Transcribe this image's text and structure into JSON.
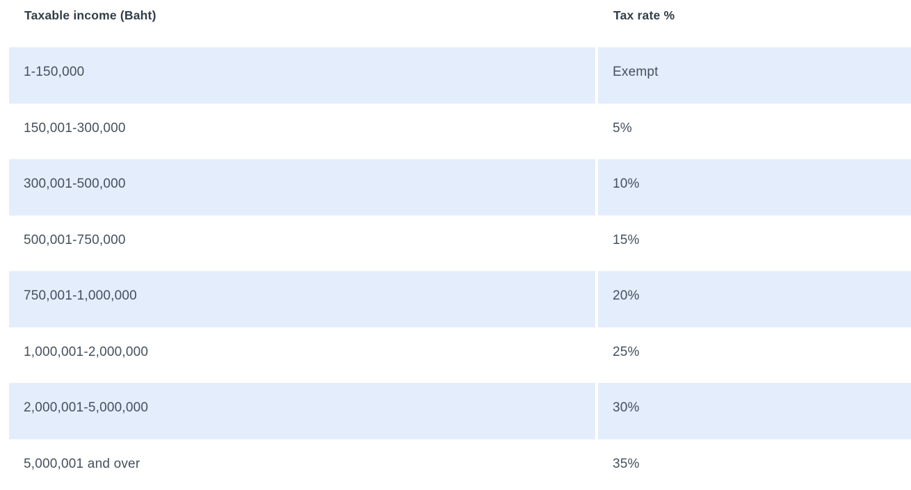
{
  "table": {
    "columns": [
      {
        "label": "Taxable income (Baht)"
      },
      {
        "label": "Tax rate %"
      }
    ],
    "rows": [
      {
        "income": "1-150,000",
        "rate": "Exempt"
      },
      {
        "income": "150,001-300,000",
        "rate": "5%"
      },
      {
        "income": "300,001-500,000",
        "rate": "10%"
      },
      {
        "income": "500,001-750,000",
        "rate": "15%"
      },
      {
        "income": "750,001-1,000,000",
        "rate": "20%"
      },
      {
        "income": "1,000,001-2,000,000",
        "rate": "25%"
      },
      {
        "income": "2,000,001-5,000,000",
        "rate": "30%"
      },
      {
        "income": "5,000,001 and over",
        "rate": "35%"
      }
    ]
  },
  "colors": {
    "row_alt_background": "#e4edfb",
    "row_background": "#ffffff",
    "header_text": "#323e48",
    "cell_text": "#454f5c"
  },
  "chart_data": {
    "type": "table",
    "title": "",
    "columns": [
      "Taxable income (Baht)",
      "Tax rate %"
    ],
    "rows": [
      [
        "1-150,000",
        "Exempt"
      ],
      [
        "150,001-300,000",
        "5%"
      ],
      [
        "300,001-500,000",
        "10%"
      ],
      [
        "500,001-750,000",
        "15%"
      ],
      [
        "750,001-1,000,000",
        "20%"
      ],
      [
        "1,000,001-2,000,000",
        "25%"
      ],
      [
        "2,000,001-5,000,000",
        "30%"
      ],
      [
        "5,000,001 and over",
        "35%"
      ]
    ]
  }
}
